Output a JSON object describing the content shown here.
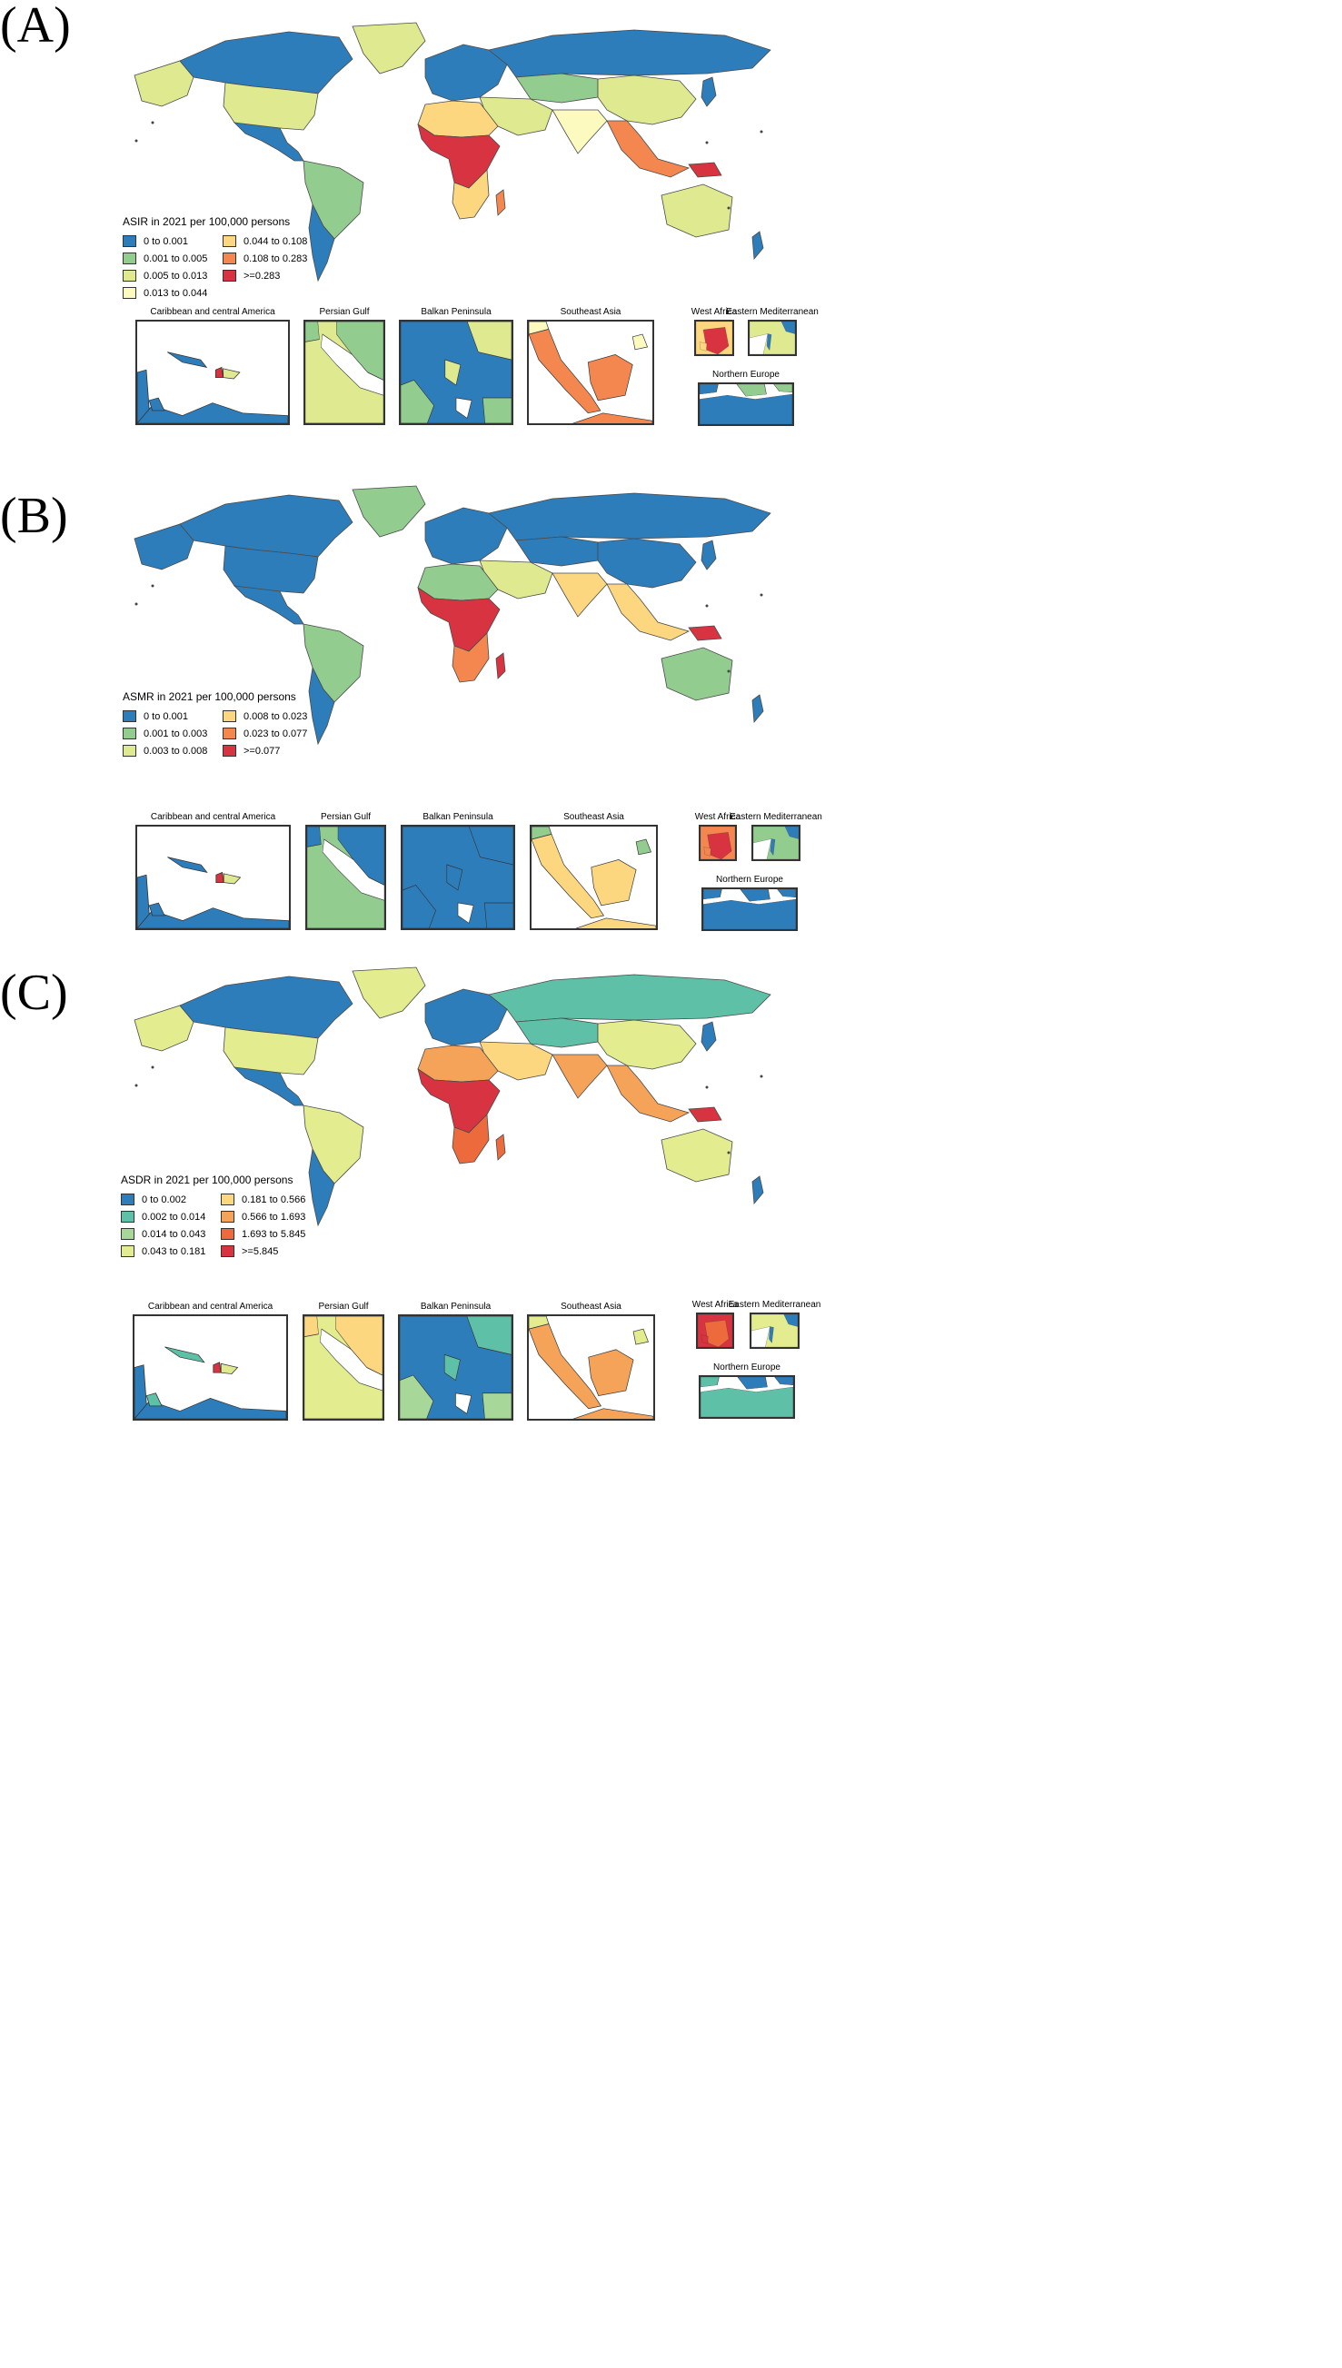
{
  "panels": [
    {
      "label": "(A)",
      "legend_title": "ASIR in 2021 per 100,000 persons",
      "legend": [
        {
          "text": "0 to 0.001",
          "color": "#2e7dbb"
        },
        {
          "text": "0.001 to 0.005",
          "color": "#92cc8f"
        },
        {
          "text": "0.005 to 0.013",
          "color": "#dfe98f"
        },
        {
          "text": "0.013 to 0.044",
          "color": "#fdfac0"
        },
        {
          "text": "0.044 to 0.108",
          "color": "#fdd77f"
        },
        {
          "text": "0.108 to 0.283",
          "color": "#f4874f"
        },
        {
          "text": ">=0.283",
          "color": "#d73340"
        }
      ],
      "insets": [
        "Caribbean and central America",
        "Persian Gulf",
        "Balkan Peninsula",
        "Southeast Asia",
        "West Africa",
        "Eastern Mediterranean",
        "Northern Europe"
      ]
    },
    {
      "label": "(B)",
      "legend_title": "ASMR in 2021 per 100,000 persons",
      "legend": [
        {
          "text": "0 to 0.001",
          "color": "#2e7dbb"
        },
        {
          "text": "0.001 to 0.003",
          "color": "#92cc8f"
        },
        {
          "text": "0.003 to 0.008",
          "color": "#dfe98f"
        },
        {
          "text": "0.008 to 0.023",
          "color": "#fdd77f"
        },
        {
          "text": "0.023 to 0.077",
          "color": "#f4874f"
        },
        {
          "text": ">=0.077",
          "color": "#d73340"
        }
      ],
      "insets": [
        "Caribbean and central America",
        "Persian Gulf",
        "Balkan Peninsula",
        "Southeast Asia",
        "West Africa",
        "Eastern Mediterranean",
        "Northern Europe"
      ]
    },
    {
      "label": "(C)",
      "legend_title": "ASDR in 2021 per 100,000 persons",
      "legend": [
        {
          "text": "0 to 0.002",
          "color": "#2e7dbb"
        },
        {
          "text": "0.002 to 0.014",
          "color": "#5fc0a8"
        },
        {
          "text": "0.014 to 0.043",
          "color": "#a8d79a"
        },
        {
          "text": "0.043 to 0.181",
          "color": "#e3ec8f"
        },
        {
          "text": "0.181 to 0.566",
          "color": "#fdd77f"
        },
        {
          "text": "0.566 to 1.693",
          "color": "#f6a35a"
        },
        {
          "text": "1.693 to 5.845",
          "color": "#ec6a3c"
        },
        {
          "text": ">=5.845",
          "color": "#d73340"
        }
      ],
      "insets": [
        "Caribbean and central America",
        "Persian Gulf",
        "Balkan Peninsula",
        "Southeast Asia",
        "West Africa",
        "Eastern Mediterranean",
        "Northern Europe"
      ]
    }
  ],
  "region_colors": [
    {
      "north_america": "#2e7dbb",
      "usa": "#dfe98f",
      "alaska": "#dfe98f",
      "greenland": "#dfe98f",
      "mexico_central": "#2e7dbb",
      "south_america": "#92cc8f",
      "southern_cone": "#2e7dbb",
      "europe": "#2e7dbb",
      "russia": "#2e7dbb",
      "middle_east": "#dfe98f",
      "central_asia": "#92cc8f",
      "china": "#dfe98f",
      "india": "#fdfac0",
      "southeast_asia": "#f4874f",
      "north_africa": "#fdd77f",
      "central_africa": "#d73340",
      "southern_africa": "#fdd77f",
      "madagascar": "#f4874f",
      "australia": "#dfe98f",
      "new_zealand": "#2e7dbb",
      "japan": "#2e7dbb",
      "papua": "#d73340"
    },
    {
      "north_america": "#2e7dbb",
      "usa": "#2e7dbb",
      "alaska": "#2e7dbb",
      "greenland": "#92cc8f",
      "mexico_central": "#2e7dbb",
      "south_america": "#92cc8f",
      "southern_cone": "#2e7dbb",
      "europe": "#2e7dbb",
      "russia": "#2e7dbb",
      "middle_east": "#dfe98f",
      "central_asia": "#2e7dbb",
      "china": "#2e7dbb",
      "india": "#fdd77f",
      "southeast_asia": "#fdd77f",
      "north_africa": "#92cc8f",
      "central_africa": "#d73340",
      "southern_africa": "#f4874f",
      "madagascar": "#d73340",
      "australia": "#92cc8f",
      "new_zealand": "#2e7dbb",
      "japan": "#2e7dbb",
      "papua": "#d73340"
    },
    {
      "north_america": "#2e7dbb",
      "usa": "#e3ec8f",
      "alaska": "#e3ec8f",
      "greenland": "#e3ec8f",
      "mexico_central": "#2e7dbb",
      "south_america": "#e3ec8f",
      "southern_cone": "#2e7dbb",
      "europe": "#2e7dbb",
      "russia": "#5fc0a8",
      "middle_east": "#fdd77f",
      "central_asia": "#5fc0a8",
      "china": "#e3ec8f",
      "india": "#f6a35a",
      "southeast_asia": "#f6a35a",
      "north_africa": "#f6a35a",
      "central_africa": "#d73340",
      "southern_africa": "#ec6a3c",
      "madagascar": "#ec6a3c",
      "australia": "#e3ec8f",
      "new_zealand": "#2e7dbb",
      "japan": "#2e7dbb",
      "papua": "#d73340"
    }
  ],
  "inset_colors": [
    {
      "carib_land": "#2e7dbb",
      "carib_islands": "#2e7dbb",
      "haiti": "#d73340",
      "gulf_land": "#dfe98f",
      "gulf_iran": "#92cc8f",
      "balkan_base": "#2e7dbb",
      "balkan_alt": "#dfe98f",
      "balkan_alt2": "#92cc8f",
      "sea_land": "#f4874f",
      "sea_north": "#fdfac0",
      "wafrica_main": "#d73340",
      "wafrica_alt": "#fdd77f",
      "emed_main": "#dfe98f",
      "emed_alt": "#2e7dbb",
      "neurope_main": "#2e7dbb",
      "neurope_alt": "#92cc8f"
    },
    {
      "carib_land": "#2e7dbb",
      "carib_islands": "#2e7dbb",
      "haiti": "#d73340",
      "gulf_land": "#92cc8f",
      "gulf_iran": "#2e7dbb",
      "balkan_base": "#2e7dbb",
      "balkan_alt": "#2e7dbb",
      "balkan_alt2": "#2e7dbb",
      "sea_land": "#fdd77f",
      "sea_north": "#92cc8f",
      "wafrica_main": "#d73340",
      "wafrica_alt": "#f4874f",
      "emed_main": "#92cc8f",
      "emed_alt": "#2e7dbb",
      "neurope_main": "#2e7dbb",
      "neurope_alt": "#2e7dbb"
    },
    {
      "carib_land": "#2e7dbb",
      "carib_islands": "#5fc0a8",
      "haiti": "#d73340",
      "gulf_land": "#e3ec8f",
      "gulf_iran": "#fdd77f",
      "balkan_base": "#2e7dbb",
      "balkan_alt": "#5fc0a8",
      "balkan_alt2": "#a8d79a",
      "sea_land": "#f6a35a",
      "sea_north": "#e3ec8f",
      "wafrica_main": "#ec6a3c",
      "wafrica_alt": "#d73340",
      "emed_main": "#e3ec8f",
      "emed_alt": "#2e7dbb",
      "neurope_main": "#5fc0a8",
      "neurope_alt": "#2e7dbb"
    }
  ]
}
